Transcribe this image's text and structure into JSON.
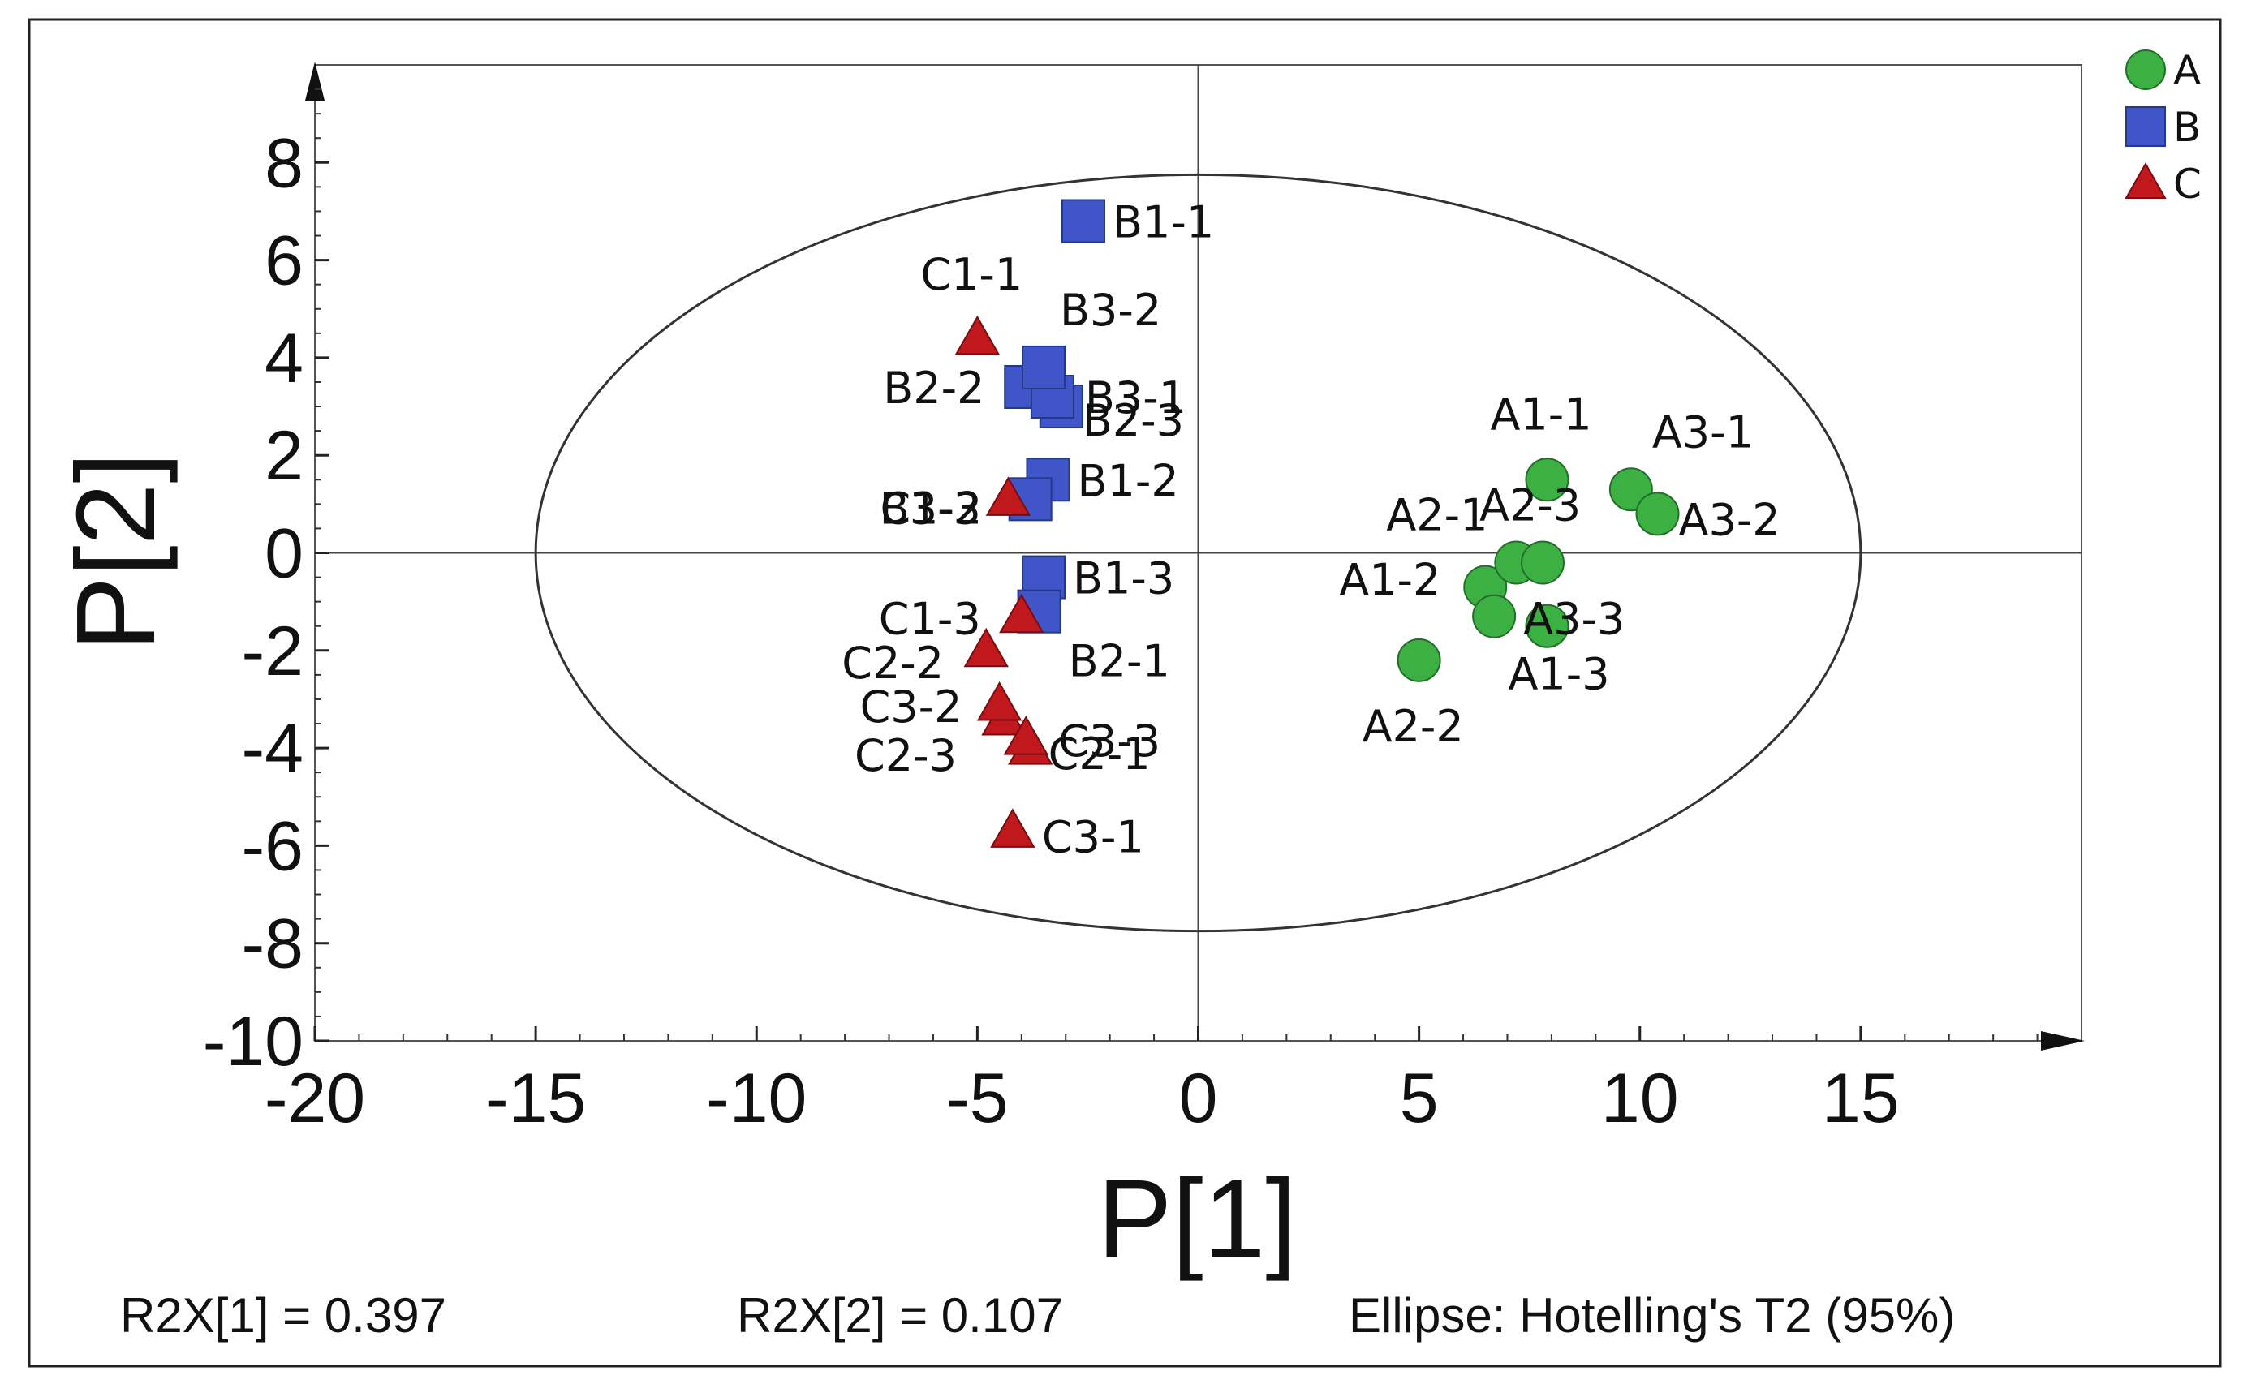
{
  "chart_data": {
    "type": "scatter",
    "title": "",
    "xlabel": "P[1]",
    "ylabel": "P[2]",
    "xlim": [
      -20,
      20
    ],
    "ylim": [
      -10,
      10
    ],
    "xticks": [
      -20,
      -15,
      -10,
      -5,
      0,
      5,
      10,
      15
    ],
    "yticks": [
      -10,
      -8,
      -6,
      -4,
      -2,
      0,
      2,
      4,
      6,
      8
    ],
    "xtick_labels": [
      "-20",
      "-15",
      "-10",
      "-5",
      "0",
      "5",
      "10",
      "15"
    ],
    "ytick_labels": [
      "-10",
      "-8",
      "-6",
      "-4",
      "-2",
      "0",
      "2",
      "4",
      "6",
      "8"
    ],
    "ellipse": {
      "center": [
        0,
        0
      ],
      "semi_axes": [
        15,
        7.75
      ]
    },
    "legend_position": "top-right",
    "series": [
      {
        "name": "A",
        "marker": "circle",
        "color": "#3cb043",
        "points": [
          {
            "x": 7.9,
            "y": 1.5,
            "label": "A1-1"
          },
          {
            "x": 6.5,
            "y": -0.7,
            "label": "A1-2"
          },
          {
            "x": 7.9,
            "y": -1.5,
            "label": "A1-3"
          },
          {
            "x": 7.2,
            "y": -0.2,
            "label": "A2-1"
          },
          {
            "x": 5.0,
            "y": -2.2,
            "label": "A2-2"
          },
          {
            "x": 7.8,
            "y": -0.2,
            "label": "A2-3"
          },
          {
            "x": 9.8,
            "y": 1.3,
            "label": "A3-1"
          },
          {
            "x": 10.4,
            "y": 0.8,
            "label": "A3-2"
          },
          {
            "x": 6.7,
            "y": -1.3,
            "label": "A3-3"
          }
        ]
      },
      {
        "name": "B",
        "marker": "square",
        "color": "#3f55c8",
        "points": [
          {
            "x": -2.6,
            "y": 6.8,
            "label": "B1-1"
          },
          {
            "x": -3.4,
            "y": 1.5,
            "label": "B1-2"
          },
          {
            "x": -3.5,
            "y": -0.5,
            "label": "B1-3"
          },
          {
            "x": -3.6,
            "y": -1.2,
            "label": "B2-1"
          },
          {
            "x": -3.9,
            "y": 3.4,
            "label": "B2-2"
          },
          {
            "x": -3.1,
            "y": 3.0,
            "label": "B2-3"
          },
          {
            "x": -3.3,
            "y": 3.2,
            "label": "B3-1"
          },
          {
            "x": -3.5,
            "y": 3.8,
            "label": "B3-2"
          },
          {
            "x": -3.8,
            "y": 1.1,
            "label": "B3-3"
          }
        ]
      },
      {
        "name": "C",
        "marker": "triangle",
        "color": "#c0181c",
        "points": [
          {
            "x": -5.0,
            "y": 4.4,
            "label": "C1-1"
          },
          {
            "x": -4.3,
            "y": 1.1,
            "label": "C1-2"
          },
          {
            "x": -4.0,
            "y": -1.3,
            "label": "C1-3"
          },
          {
            "x": -3.8,
            "y": -4.0,
            "label": "C2-1"
          },
          {
            "x": -4.8,
            "y": -2.0,
            "label": "C2-2"
          },
          {
            "x": -4.4,
            "y": -3.4,
            "label": "C2-3"
          },
          {
            "x": -4.2,
            "y": -5.7,
            "label": "C3-1"
          },
          {
            "x": -4.5,
            "y": -3.1,
            "label": "C3-2"
          },
          {
            "x": -3.9,
            "y": -3.8,
            "label": "C3-3"
          }
        ]
      }
    ]
  },
  "footer": {
    "r2x1": "R2X[1] = 0.397",
    "r2x2": "R2X[2] = 0.107",
    "ellipse_note": "Ellipse: Hotelling's T2 (95%)"
  }
}
